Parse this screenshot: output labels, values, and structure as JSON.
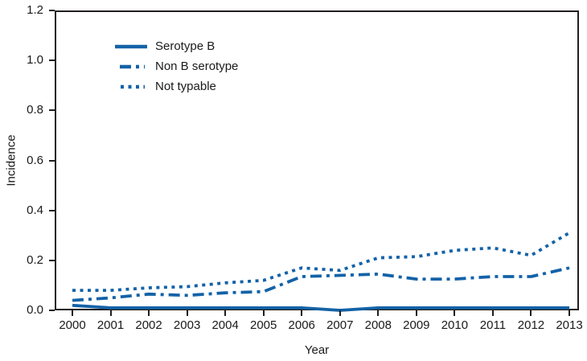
{
  "figure": {
    "line_color": "#1362a7",
    "axis_color": "#221e1f",
    "text_color": "#1a1a1a",
    "background": "#ffffff"
  },
  "chart_data": {
    "type": "line",
    "title": "",
    "xlabel": "Year",
    "ylabel": "Incidence",
    "x": [
      2000,
      2001,
      2002,
      2003,
      2004,
      2005,
      2006,
      2007,
      2008,
      2009,
      2010,
      2011,
      2012,
      2013
    ],
    "ylim": [
      0.0,
      1.2
    ],
    "yticks": [
      0.0,
      0.2,
      0.4,
      0.6,
      0.8,
      1.0,
      1.2
    ],
    "grid": false,
    "legend_position": "top-left-inside",
    "series": [
      {
        "name": "Serotype B",
        "style": "solid",
        "values": [
          0.02,
          0.01,
          0.01,
          0.01,
          0.01,
          0.01,
          0.01,
          0.0,
          0.01,
          0.01,
          0.01,
          0.01,
          0.01,
          0.01
        ]
      },
      {
        "name": "Non B serotype",
        "style": "dash-dot",
        "values": [
          0.04,
          0.05,
          0.065,
          0.06,
          0.07,
          0.075,
          0.135,
          0.14,
          0.145,
          0.125,
          0.125,
          0.135,
          0.135,
          0.17
        ]
      },
      {
        "name": "Not typable",
        "style": "dotted",
        "values": [
          0.08,
          0.08,
          0.09,
          0.095,
          0.11,
          0.12,
          0.17,
          0.16,
          0.21,
          0.215,
          0.24,
          0.25,
          0.22,
          0.31
        ]
      }
    ]
  }
}
